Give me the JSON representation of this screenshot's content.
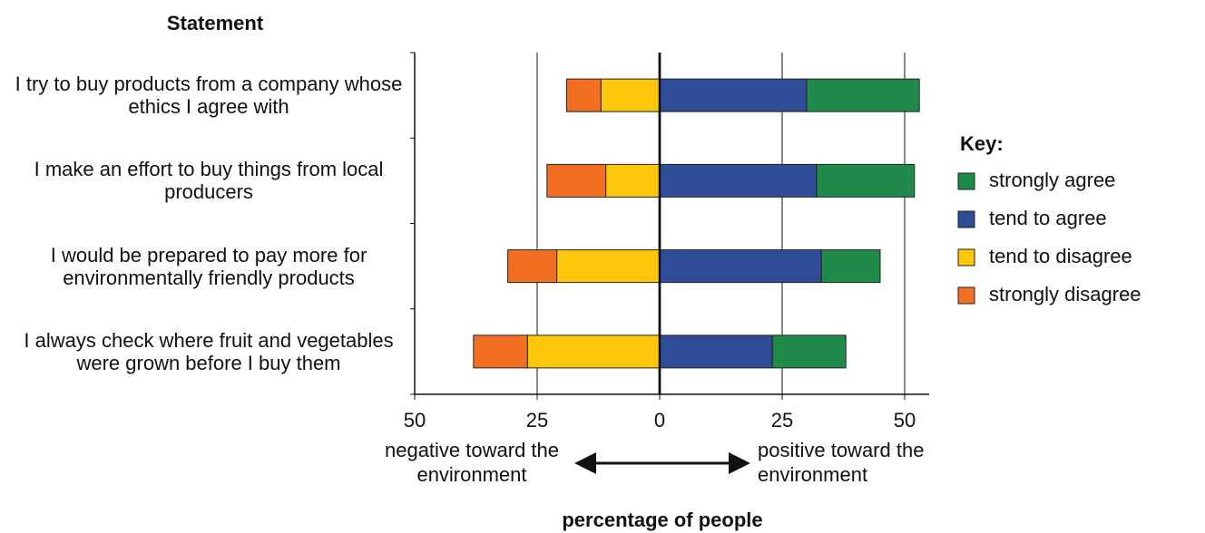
{
  "chart_data": {
    "type": "diverging_bar",
    "category_axis_title": "Statement",
    "x_axis_title": "percentage of people",
    "annotations": [
      "negative toward the environment",
      "positive toward the environment"
    ],
    "legend_title": "Key:",
    "legend": "right",
    "categories": [
      "I try to buy products from a company whose ethics I agree with",
      "I make an effort to buy things from local producers",
      "I would be prepared to pay more for environmentally friendly products",
      "I always check where fruit and vegetables were grown before I buy them"
    ],
    "series": [
      {
        "name": "strongly agree",
        "color": "#1f8a4a",
        "values": [
          23,
          20,
          12,
          15
        ]
      },
      {
        "name": "tend to agree",
        "color": "#2e4d96",
        "values": [
          30,
          32,
          33,
          23
        ]
      },
      {
        "name": "tend to disagree",
        "color": "#fcc70a",
        "values": [
          -12,
          -11,
          -21,
          -27
        ]
      },
      {
        "name": "strongly disagree",
        "color": "#f26f21",
        "values": [
          -7,
          -12,
          -10,
          -11
        ]
      }
    ],
    "xlim": [
      -50,
      55
    ],
    "xticks": [
      {
        "value": -50,
        "label": "50"
      },
      {
        "value": -25,
        "label": "25"
      },
      0,
      25,
      50
    ],
    "grid": true
  }
}
